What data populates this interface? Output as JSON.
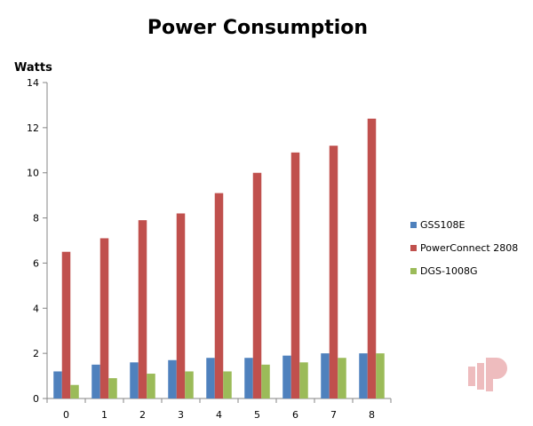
{
  "chart_data": {
    "type": "bar",
    "title": "Power Consumption",
    "ylabel": "Watts",
    "xlabel": "",
    "categories": [
      "0",
      "1",
      "2",
      "3",
      "4",
      "5",
      "6",
      "7",
      "8"
    ],
    "ylim": [
      0,
      14
    ],
    "yticks": [
      0,
      2,
      4,
      6,
      8,
      10,
      12,
      14
    ],
    "grid": false,
    "legend_position": "right",
    "series": [
      {
        "name": "GSS108E",
        "color": "#4F81BD",
        "values": [
          1.2,
          1.5,
          1.6,
          1.7,
          1.8,
          1.8,
          1.9,
          2.0,
          2.0
        ]
      },
      {
        "name": "PowerConnect 2808",
        "color": "#C0504D",
        "values": [
          6.5,
          7.1,
          7.9,
          8.2,
          9.1,
          10.0,
          10.9,
          11.2,
          12.4
        ]
      },
      {
        "name": "DGS-1008G",
        "color": "#9BBB59",
        "values": [
          0.6,
          0.9,
          1.1,
          1.2,
          1.2,
          1.5,
          1.6,
          1.8,
          2.0
        ]
      }
    ]
  },
  "watermark": {
    "color": "#E8A6A8",
    "icon": "watermark-logo-icon"
  }
}
